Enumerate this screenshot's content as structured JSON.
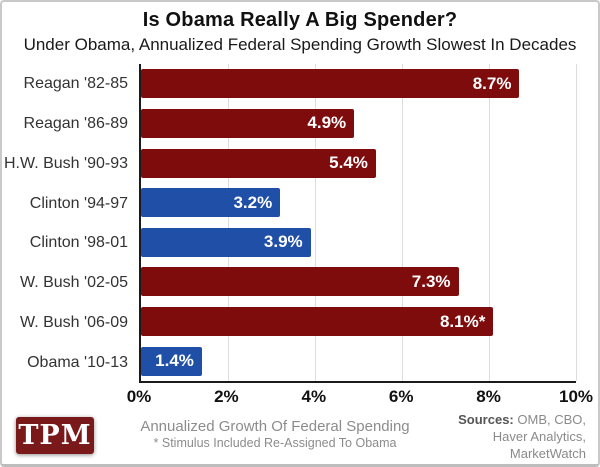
{
  "title": "Is Obama Really A Big Spender?",
  "subtitle": "Under Obama, Annualized Federal Spending Growth Slowest In Decades",
  "chart_data": {
    "type": "bar",
    "orientation": "horizontal",
    "title": "Is Obama Really A Big Spender?",
    "subtitle": "Under Obama, Annualized Federal Spending Growth Slowest In Decades",
    "categories": [
      "Reagan '82-85",
      "Reagan '86-89",
      "H.W. Bush '90-93",
      "Clinton '94-97",
      "Clinton '98-01",
      "W. Bush '02-05",
      "W. Bush '06-09",
      "Obama '10-13"
    ],
    "values": [
      8.7,
      4.9,
      5.4,
      3.2,
      3.9,
      7.3,
      8.1,
      1.4
    ],
    "value_labels": [
      "8.7%",
      "4.9%",
      "5.4%",
      "3.2%",
      "3.9%",
      "7.3%",
      "8.1%*",
      "1.4%"
    ],
    "party": [
      "R",
      "R",
      "R",
      "D",
      "D",
      "R",
      "R",
      "D"
    ],
    "colors": {
      "R": "#7f0c0c",
      "D": "#1f4fa6"
    },
    "xlim": [
      0,
      10
    ],
    "x_ticks": [
      {
        "label": "0%",
        "value": 0
      },
      {
        "label": "2%",
        "value": 2
      },
      {
        "label": "4%",
        "value": 4
      },
      {
        "label": "6%",
        "value": 6
      },
      {
        "label": "8%",
        "value": 8
      },
      {
        "label": "10%",
        "value": 10
      }
    ],
    "grid": "vertical-light-gray",
    "legend": "none"
  },
  "footer": {
    "logo_text": "TPM",
    "caption_line1": "Annualized Growth Of Federal Spending",
    "caption_line2": "* Stimulus Included Re-Assigned To Obama",
    "sources_label": "Sources:",
    "sources_rest": " OMB, CBO,",
    "sources_line2": "Haver Analytics,",
    "sources_line3": "MarketWatch"
  }
}
